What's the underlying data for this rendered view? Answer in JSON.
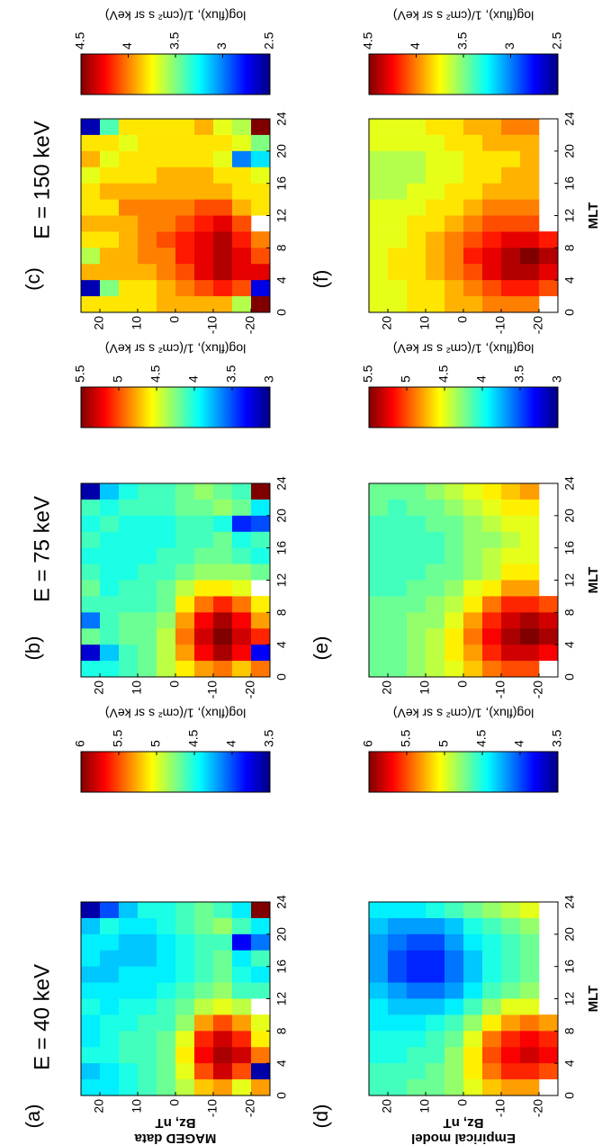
{
  "chart_data": [
    {
      "type": "heatmap",
      "label": "(a)",
      "title": "E = 40 keV",
      "y_label": [
        "MAGED data",
        "Bz, nT"
      ],
      "colorbar_label": "log(flux), 1/(cm² s sr keV)",
      "colormap": "jet",
      "xbins": [
        0,
        2,
        4,
        6,
        8,
        10,
        12,
        14,
        16,
        18,
        20,
        22,
        24
      ],
      "ybins": [
        25,
        20,
        15,
        10,
        5,
        0,
        -5,
        -10,
        -15,
        -20,
        -25
      ],
      "values": [
        [
          4.4,
          4.3,
          4.5,
          4.4,
          4.4,
          4.5,
          4.4,
          4.3,
          4.4,
          4.4,
          4.3,
          3.6
        ],
        [
          4.4,
          4.4,
          4.5,
          4.5,
          4.5,
          4.4,
          4.4,
          4.3,
          4.3,
          4.4,
          4.5,
          4.0
        ],
        [
          4.5,
          4.5,
          4.6,
          4.6,
          4.5,
          4.5,
          4.4,
          4.4,
          4.3,
          4.3,
          4.4,
          4.3
        ],
        [
          4.6,
          4.6,
          4.6,
          4.6,
          4.6,
          4.5,
          4.4,
          4.4,
          4.3,
          4.3,
          4.4,
          4.5
        ],
        [
          4.7,
          4.7,
          4.7,
          4.7,
          4.6,
          4.6,
          4.5,
          4.4,
          4.4,
          4.4,
          4.5,
          4.5
        ],
        [
          4.9,
          5.0,
          5.1,
          5.0,
          4.8,
          4.7,
          4.6,
          4.5,
          4.5,
          4.5,
          4.6,
          4.6
        ],
        [
          5.2,
          5.5,
          5.7,
          5.6,
          5.3,
          4.9,
          4.7,
          4.6,
          4.6,
          4.6,
          4.7,
          4.7
        ],
        [
          5.3,
          5.8,
          5.9,
          5.8,
          5.5,
          5.0,
          4.8,
          4.7,
          4.7,
          4.6,
          4.8,
          4.6
        ],
        [
          5.0,
          5.5,
          5.8,
          5.6,
          5.3,
          4.9,
          4.6,
          4.5,
          4.4,
          3.8,
          4.6,
          4.4
        ],
        [
          5.3,
          3.6,
          5.4,
          5.1,
          5.0,
          null,
          4.6,
          4.4,
          4.6,
          4.1,
          4.4,
          6.0
        ]
      ],
      "xlim": [
        0,
        24
      ],
      "xticks": [
        0,
        4,
        8,
        12,
        16,
        20,
        24
      ],
      "ylim": [
        -25,
        25
      ],
      "yticks": [
        20,
        10,
        0,
        -10,
        -20
      ],
      "clim": [
        3.5,
        6
      ],
      "cticks": [
        6,
        5.5,
        5,
        4.5,
        4,
        3.5
      ]
    },
    {
      "type": "heatmap",
      "label": "(b)",
      "title": "E = 75 keV",
      "colorbar_label": "log(flux), 1/(cm² s sr keV)",
      "colormap": "jet",
      "xbins": [
        0,
        2,
        4,
        6,
        8,
        10,
        12,
        14,
        16,
        18,
        20,
        22,
        24
      ],
      "ybins": [
        25,
        20,
        15,
        10,
        5,
        0,
        -5,
        -10,
        -15,
        -20,
        -25
      ],
      "values": [
        [
          4.0,
          3.2,
          4.2,
          3.6,
          4.1,
          4.2,
          4.1,
          4.0,
          4.1,
          4.0,
          4.1,
          3.1
        ],
        [
          4.0,
          3.8,
          4.1,
          4.1,
          4.1,
          4.0,
          4.0,
          4.0,
          4.0,
          4.1,
          4.0,
          3.8
        ],
        [
          4.1,
          4.1,
          4.2,
          4.2,
          4.1,
          4.1,
          4.0,
          4.0,
          4.0,
          4.0,
          4.1,
          4.0
        ],
        [
          4.2,
          4.2,
          4.2,
          4.2,
          4.1,
          4.1,
          4.1,
          4.0,
          4.0,
          4.0,
          4.1,
          4.1
        ],
        [
          4.4,
          4.4,
          4.4,
          4.3,
          4.2,
          4.2,
          4.1,
          4.1,
          4.0,
          4.0,
          4.1,
          4.1
        ],
        [
          4.6,
          4.8,
          4.9,
          4.8,
          4.6,
          4.4,
          4.2,
          4.1,
          4.1,
          4.1,
          4.2,
          4.2
        ],
        [
          4.8,
          5.2,
          5.3,
          5.2,
          4.9,
          4.6,
          4.3,
          4.2,
          4.1,
          4.1,
          4.2,
          4.3
        ],
        [
          4.9,
          5.4,
          5.5,
          5.4,
          5.1,
          4.6,
          4.3,
          4.2,
          4.2,
          4.0,
          4.3,
          4.2
        ],
        [
          4.7,
          5.2,
          5.3,
          5.2,
          4.9,
          4.5,
          4.3,
          4.1,
          4.0,
          3.4,
          4.2,
          4.1
        ],
        [
          4.9,
          3.3,
          5.1,
          4.8,
          4.6,
          null,
          4.2,
          4.0,
          4.1,
          3.5,
          3.9,
          5.5
        ]
      ],
      "xlim": [
        0,
        24
      ],
      "xticks": [
        0,
        4,
        8,
        12,
        16,
        20,
        24
      ],
      "ylim": [
        -25,
        25
      ],
      "yticks": [
        20,
        10,
        0,
        -10,
        -20
      ],
      "clim": [
        3,
        5.5
      ],
      "cticks": [
        5.5,
        5,
        4.5,
        4,
        3.5,
        3
      ]
    },
    {
      "type": "heatmap",
      "label": "(c)",
      "title": "E = 150 keV",
      "colorbar_label": "log(flux), 1/(cm² s sr keV)",
      "colormap": "jet",
      "xbins": [
        0,
        2,
        4,
        6,
        8,
        10,
        12,
        14,
        16,
        18,
        20,
        22,
        24
      ],
      "ybins": [
        25,
        20,
        15,
        10,
        5,
        0,
        -5,
        -10,
        -15,
        -20,
        -25
      ],
      "values": [
        [
          3.8,
          2.6,
          3.9,
          3.6,
          3.8,
          3.9,
          3.8,
          3.8,
          3.7,
          3.9,
          3.8,
          2.6
        ],
        [
          3.8,
          3.5,
          3.9,
          3.9,
          3.8,
          3.9,
          3.8,
          3.9,
          3.8,
          3.7,
          3.8,
          3.4
        ],
        [
          3.8,
          3.8,
          3.9,
          3.9,
          3.9,
          3.9,
          4.0,
          3.9,
          3.8,
          3.8,
          3.7,
          3.8
        ],
        [
          3.8,
          3.8,
          3.9,
          4.0,
          4.0,
          4.0,
          4.0,
          3.9,
          3.8,
          3.8,
          3.8,
          3.8
        ],
        [
          3.9,
          3.9,
          4.0,
          4.0,
          4.1,
          4.0,
          4.0,
          3.9,
          3.9,
          3.8,
          3.8,
          3.8
        ],
        [
          3.9,
          4.0,
          4.1,
          4.2,
          4.2,
          4.1,
          4.0,
          3.9,
          3.9,
          3.8,
          3.8,
          3.8
        ],
        [
          3.9,
          4.1,
          4.3,
          4.3,
          4.3,
          4.2,
          4.1,
          3.9,
          3.9,
          3.8,
          3.8,
          3.9
        ],
        [
          3.9,
          4.2,
          4.4,
          4.4,
          4.4,
          4.3,
          4.1,
          3.9,
          3.8,
          3.7,
          3.8,
          3.7
        ],
        [
          3.6,
          4.1,
          4.3,
          4.3,
          4.2,
          4.1,
          3.9,
          3.8,
          3.8,
          3.0,
          3.7,
          3.6
        ],
        [
          4.5,
          2.7,
          4.3,
          4.1,
          4.0,
          null,
          3.8,
          3.8,
          3.7,
          3.2,
          3.5,
          4.5
        ]
      ],
      "xlim": [
        0,
        24
      ],
      "xticks": [
        0,
        4,
        8,
        12,
        16,
        20,
        24
      ],
      "ylim": [
        -25,
        25
      ],
      "yticks": [
        20,
        10,
        0,
        -10,
        -20
      ],
      "clim": [
        2.5,
        4.5
      ],
      "cticks": [
        4.5,
        4,
        3.5,
        3,
        2.5
      ]
    },
    {
      "type": "heatmap",
      "label": "(d)",
      "x_label": "MLT",
      "y_label": [
        "Empirical model",
        "Bz, nT"
      ],
      "colorbar_label": "log(flux), 1/(cm² s sr keV)",
      "colormap": "jet",
      "xbins": [
        0,
        2,
        4,
        6,
        8,
        10,
        12,
        14,
        16,
        18,
        20,
        22,
        24
      ],
      "ybins": [
        25,
        20,
        15,
        10,
        5,
        0,
        -5,
        -10,
        -15,
        -20,
        -25
      ],
      "values": [
        [
          4.6,
          4.6,
          4.5,
          4.5,
          4.4,
          4.4,
          4.3,
          4.2,
          4.2,
          4.2,
          4.3,
          4.4
        ],
        [
          4.6,
          4.6,
          4.5,
          4.5,
          4.4,
          4.3,
          4.2,
          4.0,
          4.0,
          4.1,
          4.2,
          4.4
        ],
        [
          4.7,
          4.6,
          4.6,
          4.5,
          4.4,
          4.3,
          4.1,
          3.9,
          3.9,
          4.0,
          4.2,
          4.4
        ],
        [
          4.7,
          4.7,
          4.6,
          4.6,
          4.5,
          4.3,
          4.1,
          3.9,
          3.9,
          4.0,
          4.2,
          4.5
        ],
        [
          4.8,
          4.8,
          4.8,
          4.7,
          4.6,
          4.4,
          4.2,
          4.1,
          4.1,
          4.2,
          4.3,
          4.6
        ],
        [
          5.0,
          5.1,
          5.1,
          5.0,
          4.8,
          4.6,
          4.4,
          4.3,
          4.3,
          4.4,
          4.5,
          4.7
        ],
        [
          5.2,
          5.4,
          5.5,
          5.4,
          5.1,
          4.8,
          4.6,
          4.5,
          4.5,
          4.5,
          4.6,
          4.8
        ],
        [
          5.3,
          5.6,
          5.7,
          5.6,
          5.3,
          5.0,
          4.7,
          4.6,
          4.6,
          4.6,
          4.7,
          4.9
        ],
        [
          5.3,
          5.6,
          5.8,
          5.7,
          5.4,
          5.0,
          4.8,
          4.7,
          4.7,
          4.7,
          4.8,
          5.0
        ],
        [
          null,
          5.5,
          5.7,
          5.6,
          5.3,
          null,
          null,
          null,
          null,
          null,
          null,
          null
        ]
      ],
      "xlim": [
        0,
        24
      ],
      "xticks": [
        0,
        4,
        8,
        12,
        16,
        20,
        24
      ],
      "ylim": [
        -25,
        25
      ],
      "yticks": [
        20,
        10,
        0,
        -10,
        -20
      ],
      "clim": [
        3.5,
        6
      ],
      "cticks": [
        6,
        5.5,
        5,
        4.5,
        4,
        3.5
      ]
    },
    {
      "type": "heatmap",
      "label": "(e)",
      "x_label": "MLT",
      "colorbar_label": "log(flux), 1/(cm² s sr keV)",
      "colormap": "jet",
      "xbins": [
        0,
        2,
        4,
        6,
        8,
        10,
        12,
        14,
        16,
        18,
        20,
        22,
        24
      ],
      "ybins": [
        25,
        20,
        15,
        10,
        5,
        0,
        -5,
        -10,
        -15,
        -20,
        -25
      ],
      "values": [
        [
          4.2,
          4.2,
          4.2,
          4.2,
          4.2,
          4.1,
          4.1,
          4.1,
          4.1,
          4.1,
          4.2,
          4.2
        ],
        [
          4.2,
          4.2,
          4.2,
          4.2,
          4.2,
          4.1,
          4.1,
          4.1,
          4.1,
          4.1,
          4.1,
          4.2
        ],
        [
          4.3,
          4.3,
          4.3,
          4.3,
          4.2,
          4.2,
          4.1,
          4.1,
          4.1,
          4.1,
          4.2,
          4.2
        ],
        [
          4.4,
          4.4,
          4.4,
          4.3,
          4.3,
          4.2,
          4.2,
          4.1,
          4.1,
          4.2,
          4.2,
          4.3
        ],
        [
          4.5,
          4.6,
          4.6,
          4.5,
          4.4,
          4.3,
          4.2,
          4.2,
          4.2,
          4.2,
          4.3,
          4.4
        ],
        [
          4.7,
          4.8,
          4.9,
          4.8,
          4.6,
          4.5,
          4.3,
          4.3,
          4.3,
          4.3,
          4.4,
          4.5
        ],
        [
          4.9,
          5.1,
          5.2,
          5.1,
          4.9,
          4.6,
          4.4,
          4.4,
          4.3,
          4.4,
          4.5,
          4.6
        ],
        [
          5.0,
          5.3,
          5.4,
          5.3,
          5.1,
          4.8,
          4.6,
          4.5,
          4.4,
          4.5,
          4.6,
          4.7
        ],
        [
          5.0,
          5.3,
          5.5,
          5.4,
          5.1,
          4.8,
          4.6,
          4.5,
          4.5,
          4.5,
          4.6,
          4.8
        ],
        [
          null,
          5.2,
          5.4,
          5.3,
          5.0,
          null,
          null,
          null,
          null,
          null,
          null,
          null
        ]
      ],
      "xlim": [
        0,
        24
      ],
      "xticks": [
        0,
        4,
        8,
        12,
        16,
        20,
        24
      ],
      "ylim": [
        -25,
        25
      ],
      "yticks": [
        20,
        10,
        0,
        -10,
        -20
      ],
      "clim": [
        3,
        5.5
      ],
      "cticks": [
        5.5,
        5,
        4.5,
        4,
        3.5,
        3
      ]
    },
    {
      "type": "heatmap",
      "label": "(f)",
      "x_label": "MLT",
      "colorbar_label": "log(flux), 1/(cm² s sr keV)",
      "colormap": "jet",
      "xbins": [
        0,
        2,
        4,
        6,
        8,
        10,
        12,
        14,
        16,
        18,
        20,
        22,
        24
      ],
      "ybins": [
        25,
        20,
        15,
        10,
        5,
        0,
        -5,
        -10,
        -15,
        -20,
        -25
      ],
      "values": [
        [
          3.7,
          3.7,
          3.7,
          3.7,
          3.7,
          3.7,
          3.7,
          3.6,
          3.6,
          3.6,
          3.7,
          3.7
        ],
        [
          3.7,
          3.7,
          3.8,
          3.8,
          3.7,
          3.7,
          3.7,
          3.6,
          3.6,
          3.6,
          3.7,
          3.7
        ],
        [
          3.8,
          3.8,
          3.8,
          3.8,
          3.8,
          3.8,
          3.7,
          3.7,
          3.6,
          3.6,
          3.7,
          3.7
        ],
        [
          3.8,
          3.8,
          3.9,
          3.9,
          3.9,
          3.8,
          3.8,
          3.7,
          3.7,
          3.7,
          3.7,
          3.8
        ],
        [
          3.9,
          3.9,
          4.0,
          4.0,
          4.0,
          3.9,
          3.8,
          3.8,
          3.7,
          3.7,
          3.8,
          3.8
        ],
        [
          3.9,
          4.0,
          4.1,
          4.2,
          4.1,
          4.0,
          3.9,
          3.8,
          3.8,
          3.8,
          3.8,
          3.9
        ],
        [
          4.0,
          4.1,
          4.3,
          4.3,
          4.2,
          4.1,
          4.0,
          3.9,
          3.8,
          3.8,
          3.9,
          3.9
        ],
        [
          4.0,
          4.2,
          4.4,
          4.4,
          4.3,
          4.1,
          4.0,
          3.9,
          3.9,
          3.8,
          3.9,
          4.0
        ],
        [
          4.0,
          4.2,
          4.4,
          4.5,
          4.3,
          4.1,
          4.0,
          3.9,
          3.9,
          3.9,
          3.9,
          4.0
        ],
        [
          null,
          4.1,
          4.3,
          4.4,
          4.2,
          null,
          null,
          null,
          null,
          null,
          null,
          null
        ]
      ],
      "xlim": [
        0,
        24
      ],
      "xticks": [
        0,
        4,
        8,
        12,
        16,
        20,
        24
      ],
      "ylim": [
        -25,
        25
      ],
      "yticks": [
        20,
        10,
        0,
        -10,
        -20
      ],
      "clim": [
        2.5,
        4.5
      ],
      "cticks": [
        4.5,
        4,
        3.5,
        3,
        2.5
      ]
    }
  ]
}
